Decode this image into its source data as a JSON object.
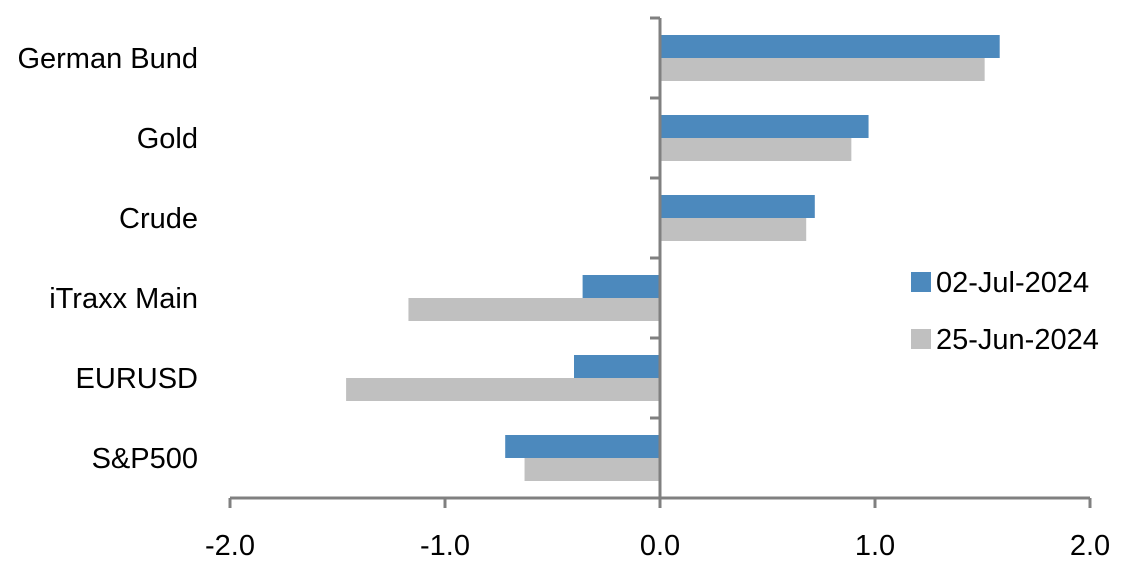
{
  "chart_data": {
    "type": "bar",
    "orientation": "horizontal",
    "categories": [
      "German Bund",
      "Gold",
      "Crude",
      "iTraxx Main",
      "EURUSD",
      "S&P500"
    ],
    "series": [
      {
        "name": "02-Jul-2024",
        "color": "#4c89bd",
        "values": [
          1.58,
          0.97,
          0.72,
          -0.36,
          -0.4,
          -0.72
        ]
      },
      {
        "name": "25-Jun-2024",
        "color": "#c0c0c0",
        "values": [
          1.51,
          0.89,
          0.68,
          -1.17,
          -1.46,
          -0.63
        ]
      }
    ],
    "xlim": [
      -2.0,
      2.0
    ],
    "xticks": [
      "-2.0",
      "-1.0",
      "0.0",
      "1.0",
      "2.0"
    ],
    "title": "",
    "xlabel": "",
    "ylabel": "",
    "grid": false,
    "legend_position": "right"
  }
}
